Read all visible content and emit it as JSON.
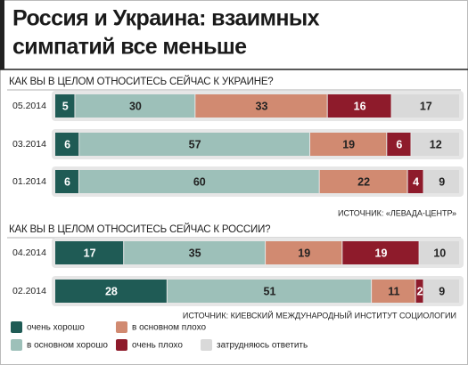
{
  "title_lines": [
    "Россия и Украина: взаимных",
    "симпатий все меньше"
  ],
  "chart_data": [
    {
      "type": "stacked-bar-horizontal",
      "title": "КАК ВЫ В ЦЕЛОМ ОТНОСИТЕСЬ СЕЙЧАС К УКРАИНЕ?",
      "categories": [
        "05.2014",
        "03.2014",
        "01.2014"
      ],
      "series": [
        {
          "name": "очень хорошо",
          "color": "#1f5b55",
          "values": [
            5,
            6,
            6
          ]
        },
        {
          "name": "в основном хорошо",
          "color": "#9dc0b9",
          "values": [
            30,
            57,
            60
          ]
        },
        {
          "name": "в основном плохо",
          "color": "#d18a71",
          "values": [
            33,
            19,
            22
          ]
        },
        {
          "name": "очень плохо",
          "color": "#8e1b2b",
          "values": [
            16,
            6,
            4
          ]
        },
        {
          "name": "затрудняюсь ответить",
          "color": "#d9d9d9",
          "values": [
            17,
            12,
            9
          ]
        }
      ],
      "source": "ИСТОЧНИК: «ЛЕВАДА-ЦЕНТР»"
    },
    {
      "type": "stacked-bar-horizontal",
      "title": "КАК ВЫ В ЦЕЛОМ ОТНОСИТЕСЬ СЕЙЧАС К РОССИИ?",
      "categories": [
        "04.2014",
        "02.2014"
      ],
      "series": [
        {
          "color": "#1f5b55",
          "values": [
            17,
            28
          ]
        },
        {
          "color": "#9dc0b9",
          "values": [
            35,
            51
          ]
        },
        {
          "color": "#d18a71",
          "values": [
            19,
            11
          ]
        },
        {
          "color": "#8e1b2b",
          "values": [
            19,
            2
          ]
        },
        {
          "color": "#d9d9d9",
          "values": [
            10,
            9
          ]
        }
      ],
      "source": "ИСТОЧНИК: КИЕВСКИЙ МЕЖДУНАРОДНЫЙ ИНСТИТУТ СОЦИОЛОГИИ"
    }
  ]
}
